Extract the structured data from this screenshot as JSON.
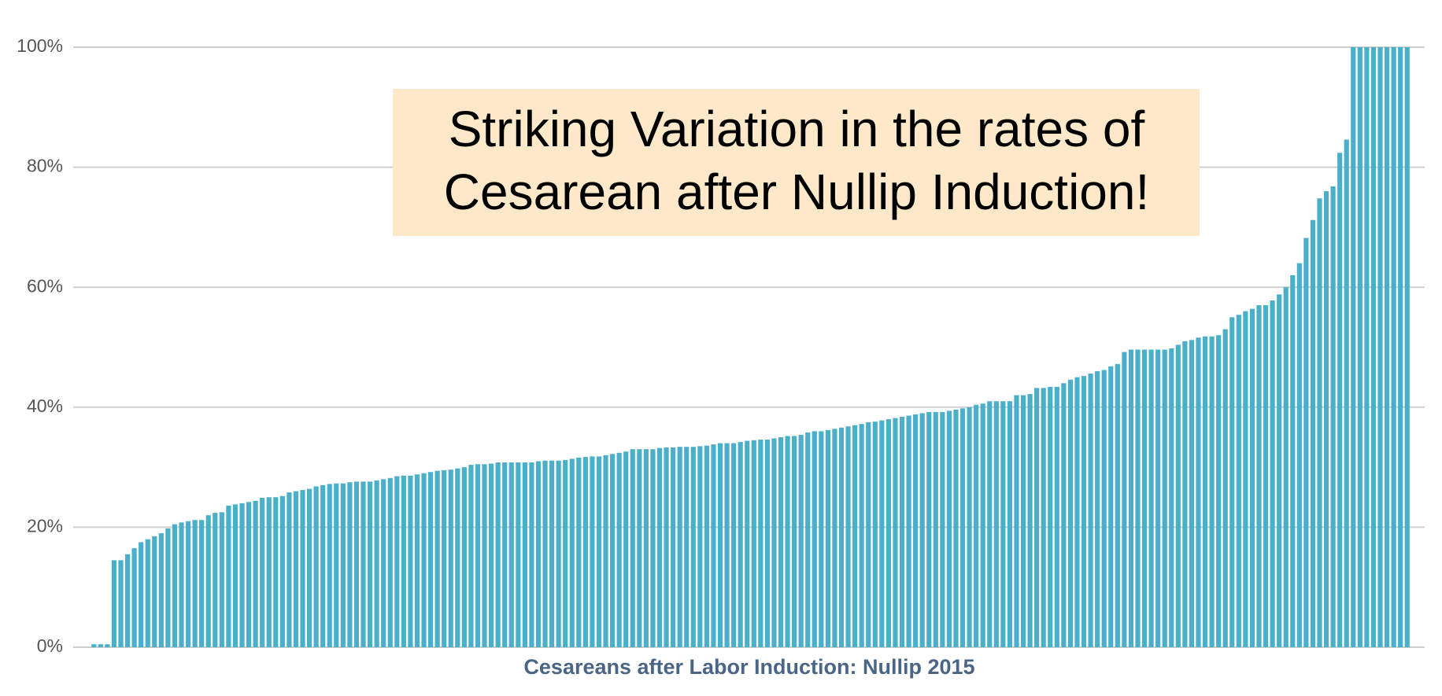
{
  "chart_data": {
    "type": "bar",
    "x_label": "Cesareans after Labor Induction: Nullip 2015",
    "annotation": [
      "Striking Variation in the rates of",
      "Cesarean after Nullip Induction!"
    ],
    "color": "#4aafc9",
    "grid": true,
    "ylim": [
      0,
      100
    ],
    "yticks": [
      {
        "value": 0,
        "label": "0%"
      },
      {
        "value": 20,
        "label": "20%"
      },
      {
        "value": 40,
        "label": "40%"
      },
      {
        "value": 60,
        "label": "60%"
      },
      {
        "value": 80,
        "label": "80%"
      },
      {
        "value": 100,
        "label": "100%"
      }
    ],
    "categories": [
      null,
      null,
      null,
      null,
      null,
      null,
      null,
      null,
      null,
      null,
      null,
      null,
      null,
      null,
      null,
      null,
      null,
      null,
      null,
      null,
      null,
      null,
      null,
      null,
      null,
      null,
      null,
      null,
      null,
      null,
      null,
      null,
      null,
      null,
      null,
      null,
      null,
      null,
      null,
      null,
      null,
      null,
      null,
      null,
      null,
      null,
      null,
      null,
      null,
      null,
      null,
      null,
      null,
      null,
      null,
      null,
      null,
      null,
      null,
      null,
      null,
      null,
      null,
      null,
      null,
      null,
      null,
      null,
      null,
      null,
      null,
      null,
      null,
      null,
      null,
      null,
      null,
      null,
      null,
      null,
      null,
      null,
      null,
      null,
      null,
      null,
      null,
      null,
      null,
      null,
      null,
      null,
      null,
      null,
      null,
      null,
      null,
      null,
      null,
      null,
      null,
      null,
      null,
      null,
      null,
      null,
      null,
      null,
      null,
      null,
      null,
      null,
      null,
      null,
      null,
      null,
      null,
      null,
      null,
      null,
      null,
      null,
      null,
      null,
      null,
      null,
      null,
      null,
      null,
      null,
      null,
      null,
      null,
      null,
      null,
      null,
      null,
      null,
      null,
      null,
      null,
      null,
      null,
      null,
      null,
      null,
      null,
      null,
      null,
      null,
      null,
      null,
      null,
      null,
      null,
      null,
      null,
      null,
      null,
      null,
      null,
      null,
      null,
      null,
      null,
      null,
      null,
      null,
      null,
      null,
      null,
      null,
      null,
      null,
      null,
      null,
      null,
      null,
      null,
      null,
      null,
      null,
      null,
      null,
      null,
      null,
      null,
      null,
      null,
      null,
      null,
      null,
      null,
      null,
      null,
      null
    ],
    "values": [
      0.5,
      0.5,
      0.5,
      14.5,
      14.5,
      15.5,
      16.5,
      17.5,
      18,
      18.5,
      19,
      19.8,
      20.5,
      20.8,
      21,
      21.2,
      21.2,
      22,
      22.4,
      22.5,
      23.6,
      23.8,
      24,
      24.2,
      24.4,
      24.9,
      25,
      25,
      25.2,
      25.8,
      26,
      26.2,
      26.4,
      26.8,
      27,
      27.2,
      27.3,
      27.3,
      27.5,
      27.6,
      27.6,
      27.6,
      27.8,
      28,
      28.2,
      28.5,
      28.6,
      28.6,
      28.8,
      29,
      29.2,
      29.4,
      29.5,
      29.6,
      29.8,
      30,
      30.4,
      30.5,
      30.5,
      30.6,
      30.8,
      30.8,
      30.8,
      30.8,
      30.8,
      30.8,
      31,
      31.1,
      31.1,
      31.1,
      31.2,
      31.4,
      31.6,
      31.7,
      31.8,
      31.8,
      32,
      32.2,
      32.4,
      32.6,
      33,
      33,
      33,
      33,
      33.2,
      33.3,
      33.3,
      33.4,
      33.4,
      33.4,
      33.5,
      33.6,
      33.8,
      34,
      34,
      34,
      34.2,
      34.4,
      34.5,
      34.6,
      34.6,
      34.8,
      35,
      35.2,
      35.2,
      35.4,
      35.8,
      36,
      36,
      36.2,
      36.4,
      36.6,
      36.8,
      37,
      37.2,
      37.5,
      37.6,
      37.8,
      38,
      38.2,
      38.4,
      38.6,
      38.8,
      39,
      39.2,
      39.2,
      39.2,
      39.4,
      39.6,
      39.8,
      40,
      40.4,
      40.6,
      41,
      41,
      41,
      41,
      42,
      42,
      42.2,
      43.2,
      43.2,
      43.4,
      43.4,
      44,
      44.6,
      45,
      45.2,
      45.6,
      46,
      46.2,
      46.8,
      47.2,
      49.2,
      49.6,
      49.6,
      49.6,
      49.6,
      49.6,
      49.6,
      49.8,
      50.4,
      51,
      51.2,
      51.6,
      51.8,
      51.8,
      52,
      53,
      55,
      55.4,
      56,
      56.4,
      57,
      57,
      57.8,
      58.8,
      60,
      62,
      64,
      68.2,
      71.2,
      74.8,
      76,
      76.8,
      82.4,
      84.6,
      100,
      100,
      100,
      100,
      100,
      100,
      100,
      100,
      100
    ]
  }
}
